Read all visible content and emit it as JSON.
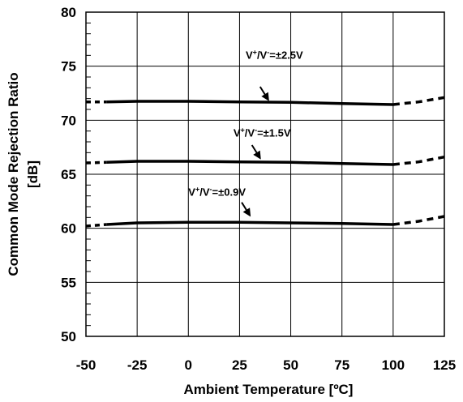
{
  "chart_data": {
    "type": "line",
    "xlabel": "Ambient Temperature [ºC]",
    "ylabel_line1": "Common Mode Rejection Ratio",
    "ylabel_line2": "[dB]",
    "xlim": [
      -50,
      125
    ],
    "ylim": [
      50,
      80
    ],
    "x_ticks": [
      -50,
      -25,
      0,
      25,
      50,
      75,
      100,
      125
    ],
    "x_tick_labels": [
      "-50",
      "-25",
      "0",
      "25",
      "50",
      "75",
      "100",
      "125"
    ],
    "y_ticks": [
      50,
      55,
      60,
      65,
      70,
      75,
      80
    ],
    "y_tick_labels": [
      "50",
      "55",
      "60",
      "65",
      "70",
      "75",
      "80"
    ],
    "grid": true,
    "line_color": "#000000",
    "series": [
      {
        "label_main": "V",
        "label_sup1": "+",
        "label_mid": "/V",
        "label_sup2": "-",
        "label_tail": "=±2.5V",
        "x": [
          -50,
          -40,
          -25,
          0,
          25,
          50,
          75,
          100,
          112.5,
          125
        ],
        "y": [
          71.7,
          71.7,
          71.75,
          71.75,
          71.7,
          71.65,
          71.55,
          71.45,
          71.7,
          72.1
        ],
        "solid_from": -40,
        "solid_to": 100,
        "label_anchor_x": 28,
        "label_anchor_y": 75.7,
        "arrow_x": 39,
        "arrow_y": 71.9
      },
      {
        "label_main": "V",
        "label_sup1": "+",
        "label_mid": "/V",
        "label_sup2": "-",
        "label_tail": "=±1.5V",
        "x": [
          -50,
          -40,
          -25,
          0,
          25,
          50,
          75,
          100,
          112.5,
          125
        ],
        "y": [
          66.05,
          66.1,
          66.2,
          66.2,
          66.15,
          66.1,
          66.0,
          65.9,
          66.15,
          66.6
        ],
        "solid_from": -40,
        "solid_to": 100,
        "label_anchor_x": 22,
        "label_anchor_y": 68.5,
        "arrow_x": 35,
        "arrow_y": 66.5
      },
      {
        "label_main": "V",
        "label_sup1": "+",
        "label_mid": "/V",
        "label_sup2": "-",
        "label_tail": "=±0.9V",
        "x": [
          -50,
          -40,
          -25,
          0,
          25,
          50,
          75,
          100,
          112.5,
          125
        ],
        "y": [
          60.2,
          60.35,
          60.5,
          60.55,
          60.55,
          60.5,
          60.45,
          60.35,
          60.65,
          61.1
        ],
        "solid_from": -40,
        "solid_to": 100,
        "label_anchor_x": 0,
        "label_anchor_y": 63.0,
        "arrow_x": 30,
        "arrow_y": 61.2
      }
    ]
  }
}
